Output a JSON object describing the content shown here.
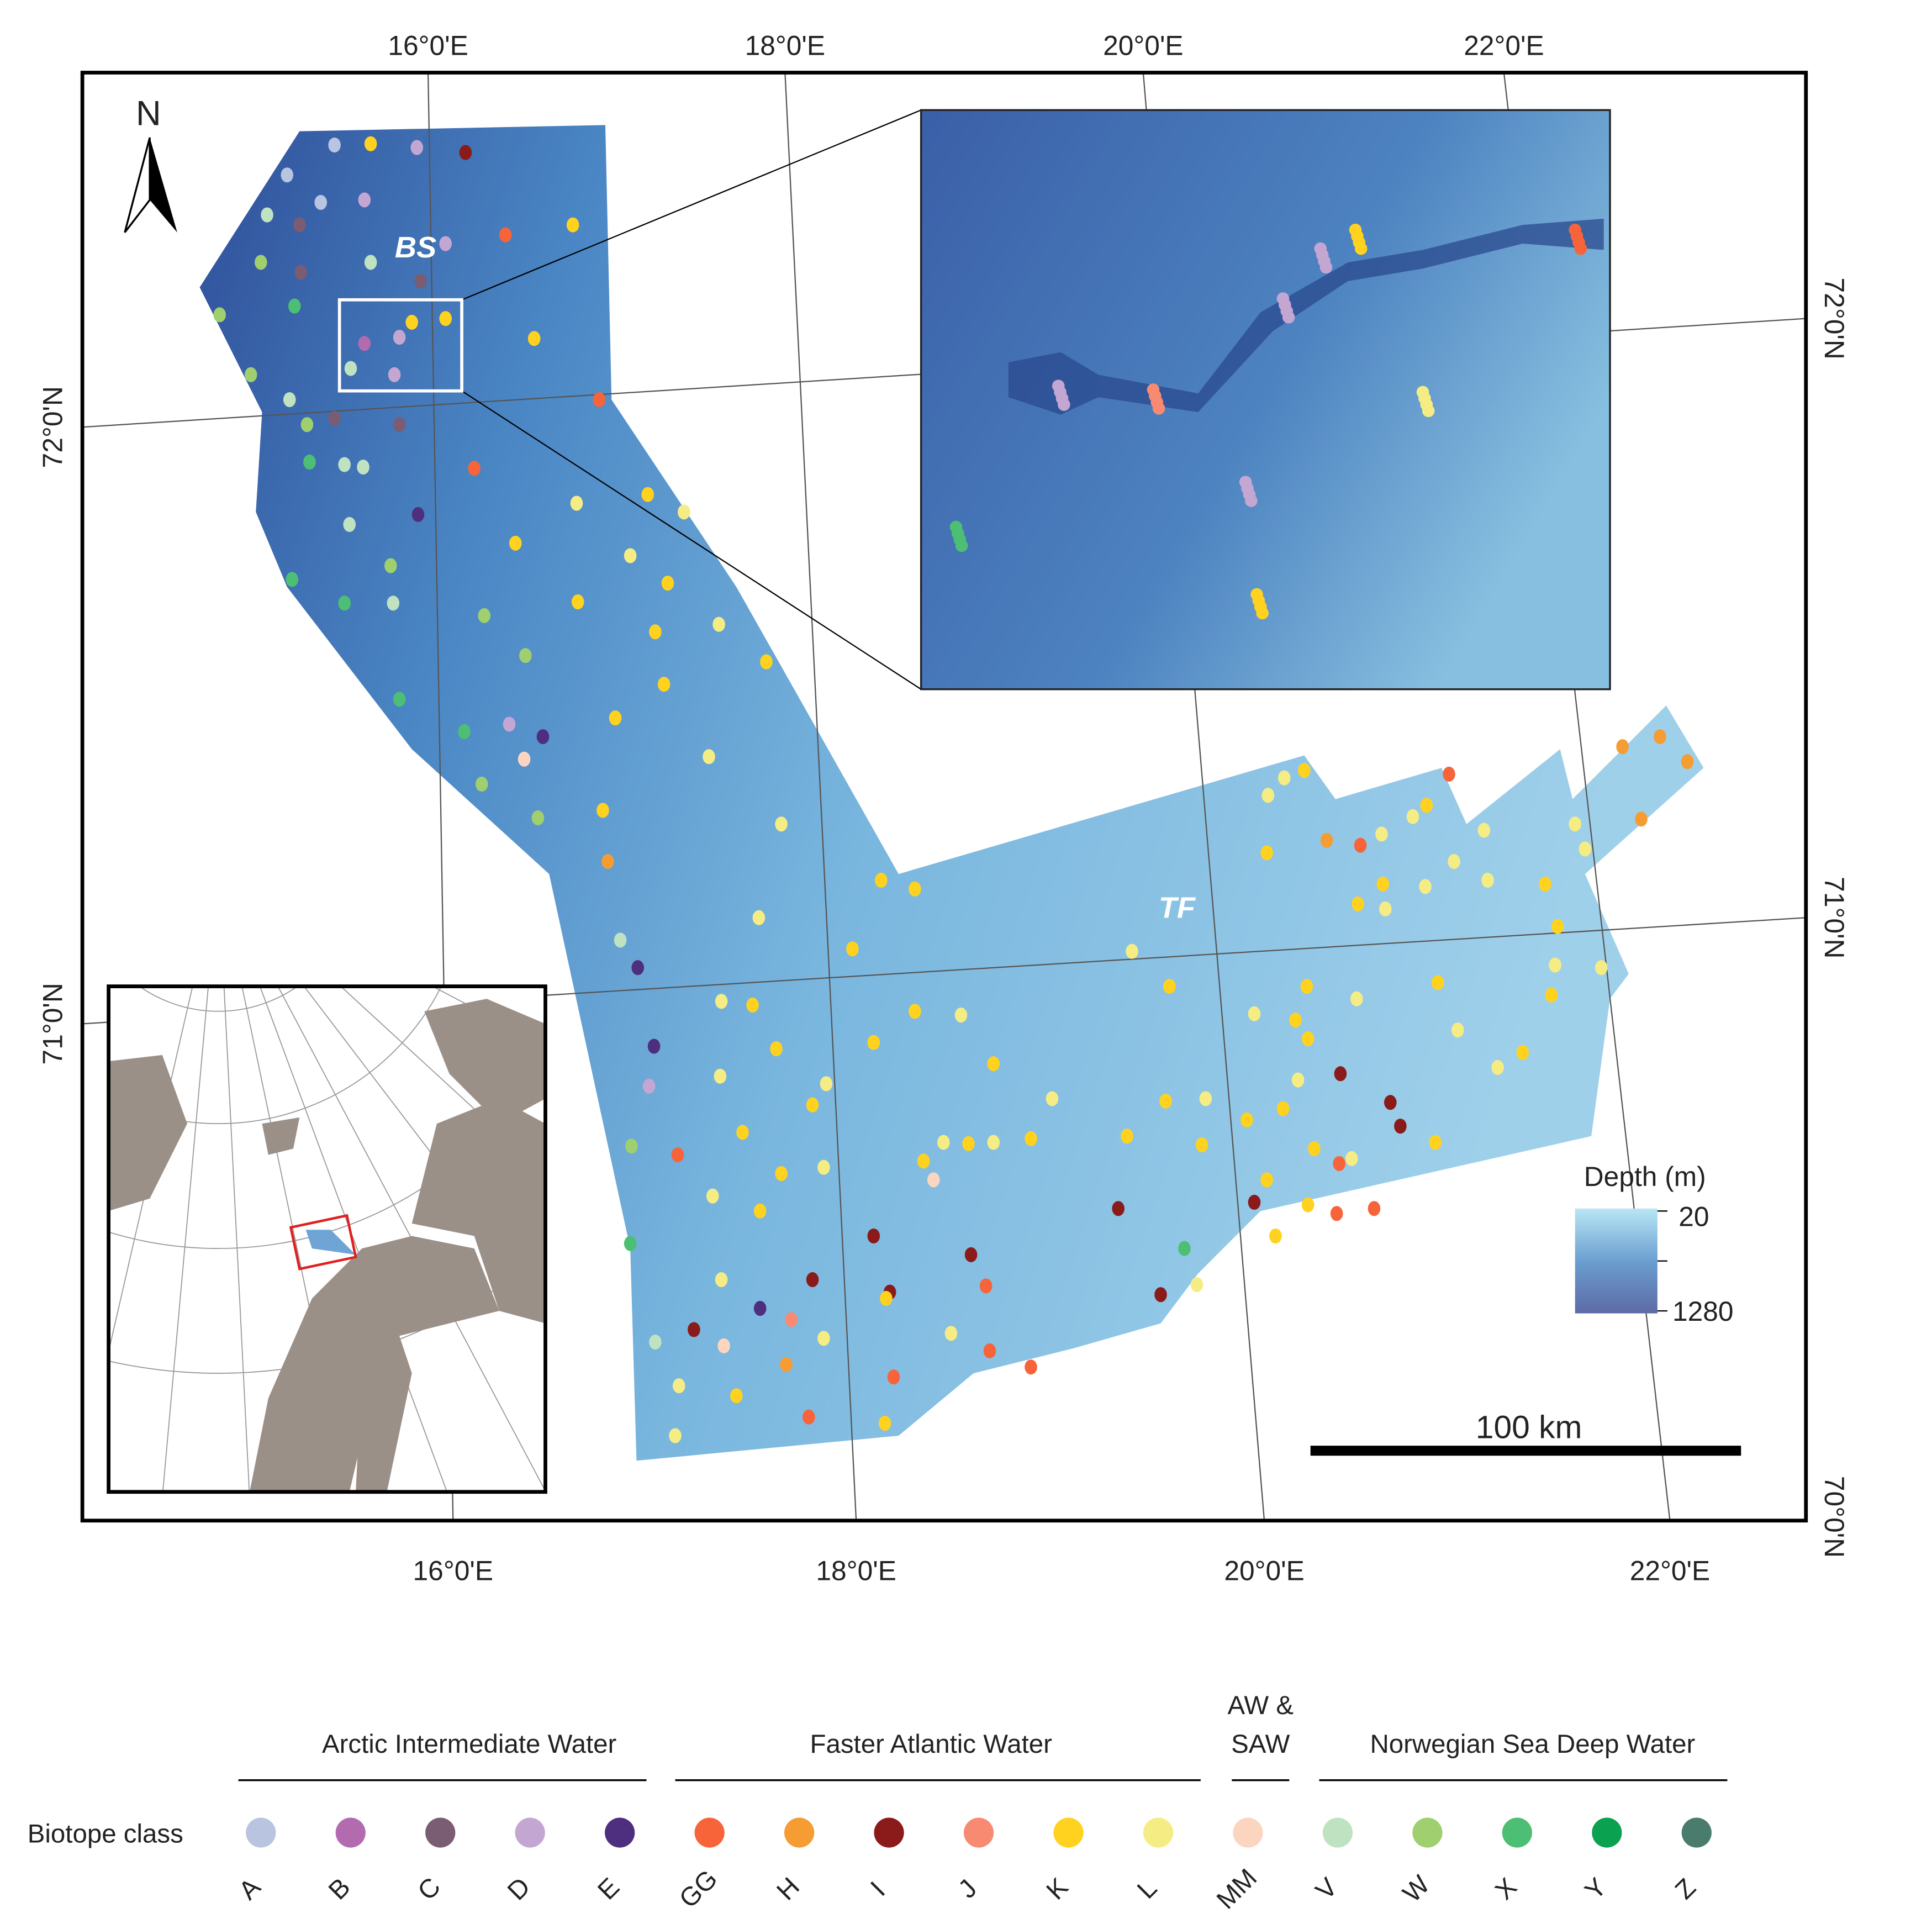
{
  "graticule": {
    "top": [
      "16°0'E",
      "18°0'E",
      "20°0'E",
      "22°0'E"
    ],
    "bottom": [
      "16°0'E",
      "18°0'E",
      "20°0'E",
      "22°0'E"
    ],
    "left": [
      "72°0'N",
      "71°0'N"
    ],
    "right": [
      "72°0'N",
      "71°0'N",
      "70°0'N"
    ]
  },
  "north_label": "N",
  "area_labels": [
    "BS",
    "TF"
  ],
  "depth_legend": {
    "title": "Depth (m)",
    "min_label": "20",
    "max_label": "1280"
  },
  "scale_bar": "100 km",
  "legend": {
    "title": "Biotope class",
    "groups": [
      {
        "lines": [
          "Arctic Intermediate Water"
        ]
      },
      {
        "lines": [
          "Faster Atlantic Water"
        ]
      },
      {
        "lines": [
          "AW &",
          "SAW"
        ]
      },
      {
        "lines": [
          "Norwegian Sea Deep Water"
        ]
      }
    ],
    "classes": [
      {
        "label": "A",
        "color": "#b8c4e0"
      },
      {
        "label": "B",
        "color": "#b36bb0"
      },
      {
        "label": "C",
        "color": "#7a5c73"
      },
      {
        "label": "D",
        "color": "#c4a6d3"
      },
      {
        "label": "E",
        "color": "#4e2e7e"
      },
      {
        "label": "GG",
        "color": "#f7643a"
      },
      {
        "label": "H",
        "color": "#f59c33"
      },
      {
        "label": "I",
        "color": "#8b1a1a"
      },
      {
        "label": "J",
        "color": "#f98a72"
      },
      {
        "label": "K",
        "color": "#ffd21f"
      },
      {
        "label": "L",
        "color": "#f5ed84"
      },
      {
        "label": "MM",
        "color": "#fcd5c0"
      },
      {
        "label": "V",
        "color": "#bfe2c0"
      },
      {
        "label": "W",
        "color": "#9fcf6e"
      },
      {
        "label": "X",
        "color": "#4dbf74"
      },
      {
        "label": "Y",
        "color": "#0aa150"
      },
      {
        "label": "Z",
        "color": "#4a7c6e"
      }
    ]
  }
}
